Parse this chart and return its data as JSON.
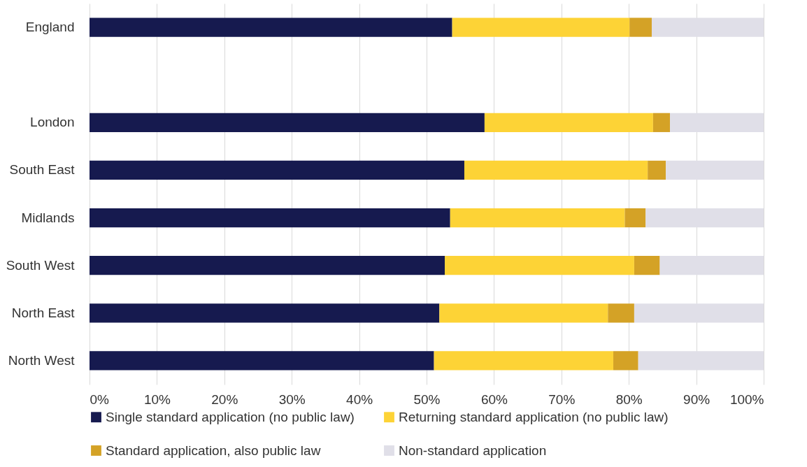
{
  "chart_data": {
    "type": "bar",
    "orientation": "horizontal",
    "stacked": true,
    "categories": [
      "England",
      null,
      "London",
      "South East",
      "Midlands",
      "South West",
      "North East",
      "North West"
    ],
    "series": [
      {
        "name": "Single standard application (no public law)",
        "color": "#161a4f",
        "values": [
          53.8,
          null,
          58.6,
          55.6,
          53.5,
          52.7,
          51.9,
          51.1
        ]
      },
      {
        "name": "Returning standard application (no public law)",
        "color": "#fdd336",
        "values": [
          26.3,
          null,
          25.0,
          27.2,
          25.9,
          28.1,
          25.0,
          26.6
        ]
      },
      {
        "name": "Standard application, also public law",
        "color": "#d4a226",
        "values": [
          3.3,
          null,
          2.5,
          2.7,
          3.1,
          3.8,
          3.9,
          3.7
        ]
      },
      {
        "name": "Non-standard application",
        "color": "#e0dfe8",
        "values": [
          16.6,
          null,
          13.9,
          14.5,
          17.5,
          15.4,
          19.2,
          18.6
        ]
      }
    ],
    "xlim": [
      0,
      100
    ],
    "xticks": [
      {
        "value": 0,
        "label": "0%"
      },
      {
        "value": 10,
        "label": "10%"
      },
      {
        "value": 20,
        "label": "20%"
      },
      {
        "value": 30,
        "label": "30%"
      },
      {
        "value": 40,
        "label": "40%"
      },
      {
        "value": 50,
        "label": "50%"
      },
      {
        "value": 60,
        "label": "60%"
      },
      {
        "value": 70,
        "label": "70%"
      },
      {
        "value": 80,
        "label": "80%"
      },
      {
        "value": 90,
        "label": "90%"
      },
      {
        "value": 100,
        "label": "100%"
      }
    ],
    "grid": "x",
    "legend": "bottom"
  }
}
